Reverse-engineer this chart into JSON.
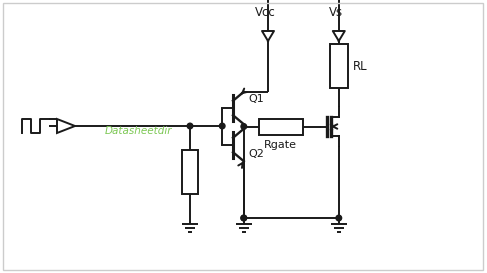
{
  "bg_color": "#ffffff",
  "line_color": "#1a1a1a",
  "text_color": "#1a1a1a",
  "watermark_color": "#7dc855",
  "vcc_label": "Vcc",
  "vs_label": "Vs",
  "q1_label": "Q1",
  "q2_label": "Q2",
  "rgate_label": "Rgate",
  "rl_label": "RL",
  "watermark": "Datasheetdir",
  "border_color": "#cccccc"
}
